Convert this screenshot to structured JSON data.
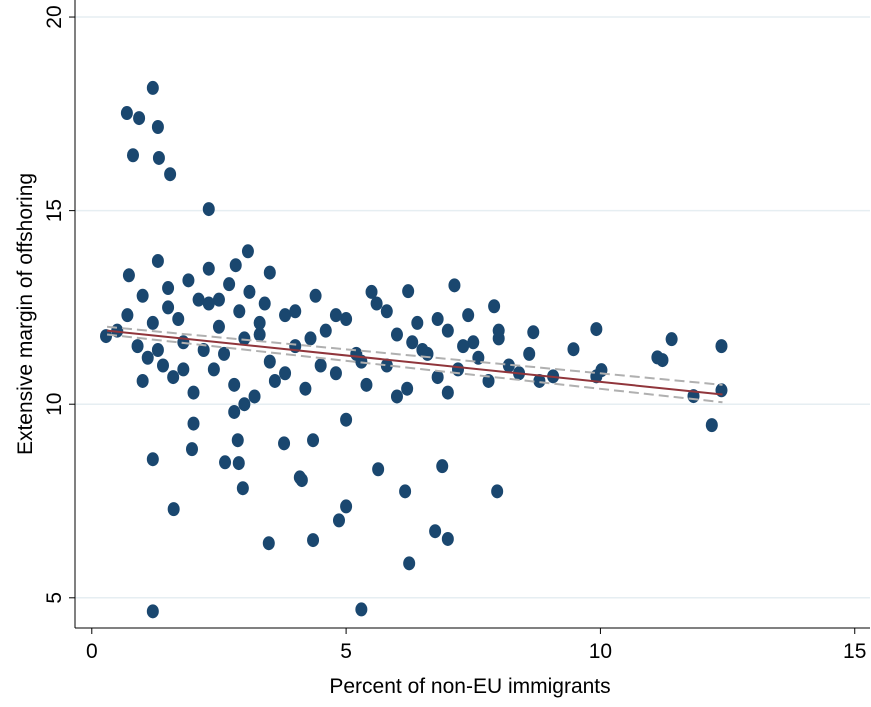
{
  "chart_data": {
    "type": "scatter",
    "xlabel": "Percent of non-EU immigrants",
    "ylabel": "Extensive margin of offshoring",
    "xlim": [
      -0.33,
      15.3
    ],
    "ylim": [
      4.22,
      20.44
    ],
    "xticks": [
      0,
      5,
      10,
      15
    ],
    "yticks": [
      5,
      10,
      15,
      20
    ],
    "grid": true,
    "series": [
      {
        "color": "#1a476f",
        "x": [
          1.2,
          0.69,
          0.93,
          1.3,
          0.81,
          1.32,
          1.54,
          2.3,
          3.07,
          1.2,
          5.3,
          6.24,
          3.48,
          4.35,
          7.0,
          6.75,
          4.86,
          5.0,
          1.61,
          6.16,
          7.97,
          2.97,
          4.13,
          4.09,
          1.2,
          2.62,
          2.89,
          5.63,
          6.89,
          2.87,
          3.78,
          4.35,
          1.97,
          12.19,
          11.83,
          12.38,
          12.38,
          11.4,
          11.12,
          11.22,
          9.92,
          10.02,
          9.47,
          9.92,
          9.07,
          8.68,
          7.91,
          7.13,
          6.22,
          2.83,
          0.73,
          0.28,
          0.5,
          0.7,
          0.9,
          1.0,
          1.1,
          1.2,
          1.3,
          1.4,
          1.5,
          1.6,
          1.7,
          1.8,
          1.9,
          2.0,
          2.1,
          2.2,
          2.3,
          2.4,
          2.5,
          2.6,
          2.7,
          2.8,
          2.9,
          3.0,
          3.1,
          3.2,
          3.3,
          3.4,
          3.5,
          3.6,
          3.8,
          4.0,
          4.2,
          4.4,
          4.6,
          4.8,
          5.0,
          5.2,
          5.4,
          5.6,
          5.8,
          6.0,
          6.2,
          6.4,
          6.6,
          6.8,
          7.0,
          7.2,
          7.4,
          7.6,
          7.8,
          8.0,
          8.2,
          8.4,
          8.6,
          8.8,
          1.0,
          1.5,
          2.0,
          2.5,
          3.0,
          3.5,
          4.0,
          4.5,
          5.0,
          5.5,
          6.0,
          6.5,
          7.0,
          7.5,
          8.0,
          1.3,
          1.8,
          2.3,
          2.8,
          3.3,
          3.8,
          4.3,
          4.8,
          5.3,
          5.8,
          6.3,
          6.8,
          7.3
        ],
        "values": [
          18.17,
          17.52,
          17.39,
          17.16,
          16.43,
          16.36,
          15.94,
          15.04,
          13.95,
          4.65,
          4.7,
          5.89,
          6.41,
          6.49,
          6.52,
          6.72,
          7.0,
          7.36,
          7.29,
          7.75,
          7.75,
          7.83,
          8.04,
          8.11,
          8.58,
          8.5,
          8.48,
          8.32,
          8.4,
          9.07,
          8.99,
          9.07,
          8.84,
          9.46,
          10.21,
          10.36,
          11.5,
          11.68,
          11.21,
          11.14,
          11.94,
          10.88,
          11.42,
          10.72,
          10.72,
          11.86,
          12.53,
          13.07,
          12.92,
          13.59,
          13.33,
          11.76,
          11.9,
          12.3,
          11.5,
          12.8,
          11.2,
          12.1,
          13.7,
          11.0,
          12.5,
          10.7,
          12.2,
          11.6,
          13.2,
          10.3,
          12.7,
          11.4,
          13.5,
          10.9,
          12.0,
          11.3,
          13.1,
          10.5,
          12.4,
          11.7,
          12.9,
          10.2,
          11.8,
          12.6,
          11.1,
          10.6,
          12.3,
          11.5,
          10.4,
          12.8,
          11.9,
          10.8,
          12.2,
          11.3,
          10.5,
          12.6,
          11.0,
          11.8,
          10.4,
          12.1,
          11.3,
          10.7,
          11.9,
          10.9,
          12.3,
          11.2,
          10.6,
          11.7,
          11.0,
          10.8,
          11.3,
          10.6,
          10.6,
          13.0,
          9.5,
          12.7,
          10.0,
          13.4,
          12.4,
          11.0,
          9.6,
          12.9,
          10.2,
          11.4,
          10.3,
          11.6,
          11.9,
          11.4,
          10.9,
          12.6,
          9.8,
          12.1,
          10.8,
          11.7,
          12.3,
          11.1,
          12.4,
          11.6,
          12.2,
          11.5
        ]
      }
    ],
    "fit": {
      "color": "#90353b",
      "x": [
        0.3,
        12.4
      ],
      "values": [
        11.9,
        10.25
      ]
    },
    "ci": {
      "color": "#b0b0b0",
      "x": [
        0.3,
        12.4
      ],
      "upper": [
        12.0,
        10.5
      ],
      "lower": [
        11.8,
        10.05
      ]
    }
  }
}
